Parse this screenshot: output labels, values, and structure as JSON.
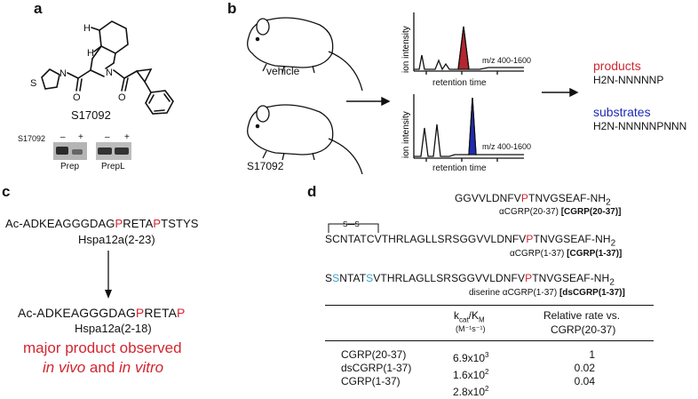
{
  "panels": {
    "a": "a",
    "b": "b",
    "c": "c",
    "d": "d"
  },
  "panel_a": {
    "compound": "S17092",
    "atom_labels": {
      "H_top": "H",
      "H_bottom": "H",
      "N": "N",
      "S": "S",
      "O_left": "O",
      "O_right": "O"
    },
    "blot_compound": "S17092",
    "blot_minus": "–",
    "blot_plus": "+",
    "blot_minus2": "–",
    "blot_plus2": "+",
    "blot_labels": [
      "Prep",
      "PrepL"
    ]
  },
  "panel_b": {
    "vehicle": "vehicle",
    "treated": "S17092",
    "y_axis": "ion intensity",
    "x_axis": "retention time",
    "mz_range": "m/z 400-1600",
    "products_label": "products",
    "products_seq": "H2N-NNNNNP",
    "substrates_label": "substrates",
    "substrates_seq": "H2N-NNNNNPNNN",
    "colors": {
      "products": "#b5262f",
      "substrates": "#1f2bb5"
    }
  },
  "panel_c": {
    "substrate_seq": [
      "Ac-ADKEAGGGDAG",
      "P",
      "RETA",
      "P",
      "TSTYS"
    ],
    "substrate_name": "Hspa12a(2-23)",
    "product_seq": [
      "Ac-ADKEAGGGDAG",
      "P",
      "RETA",
      "P"
    ],
    "product_name": "Hspa12a(2-18)",
    "note_line1": "major product observed",
    "note_line2_a": "in vivo",
    "note_line2_b": " and ",
    "note_line2_c": "in vitro"
  },
  "panel_d": {
    "seq1": [
      "GGVVLDNFV",
      "P",
      "TNVGSEAF-NH",
      "2"
    ],
    "seq1_label": [
      "αCGRP(20-37) ",
      "[CGRP(20-37)]"
    ],
    "disulfide": "S—S",
    "seq2": [
      "SCNTATCVTHRLAGLLSRSGGVVLDNFV",
      "P",
      "TNVGSEAF-NH",
      "2"
    ],
    "seq2_label": [
      "αCGRP(1-37) ",
      "[CGRP(1-37)]"
    ],
    "seq3": [
      "S",
      "S",
      "NTAT",
      "S",
      "VTHRLAGLLSRSGGVVLDNFV",
      "P",
      "TNVGSEAF-NH",
      "2"
    ],
    "seq3_label": [
      "diserine αCGRP(1-37) ",
      "[dsCGRP(1-37)]"
    ],
    "table": {
      "col2_head": "k",
      "col2_sub1": "cat",
      "col2_mid": "/K",
      "col2_sub2": "M",
      "col2_units": "(M⁻¹s⁻¹)",
      "col3_head1": "Relative rate vs.",
      "col3_head2": "CGRP(20-37)",
      "rows": [
        {
          "name": "CGRP(20-37)",
          "mant": "6.9x10",
          "exp": "3",
          "rel": "1"
        },
        {
          "name": "dsCGRP(1-37)",
          "mant": "1.6x10",
          "exp": "2",
          "rel": "0.02"
        },
        {
          "name": "CGRP(1-37)",
          "mant": "2.8x10",
          "exp": "2",
          "rel": "0.04"
        }
      ]
    }
  }
}
